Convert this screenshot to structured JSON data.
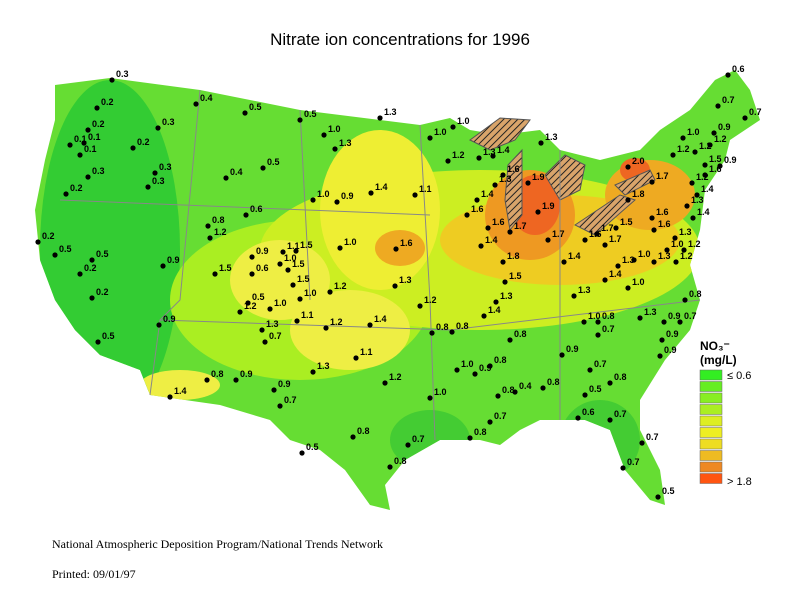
{
  "title": "Nitrate ion concentrations for 1996",
  "legend": {
    "title": "NO₃⁻",
    "units": "(mg/L)",
    "low_label": "≤ 0.6",
    "high_label": "> 1.8"
  },
  "sites": [
    "0.3",
    "0.2",
    "0.2",
    "0.1",
    "0.1",
    "0.1",
    "0.3",
    "0.2",
    "0.3",
    "0.2",
    "0.3",
    "0.3",
    "0.4",
    "0.5",
    "0.5",
    "0.4",
    "0.5",
    "0.2",
    "0.5",
    "0.5",
    "0.2",
    "0.2",
    "0.5",
    "0.6",
    "0.8",
    "1.2",
    "0.9",
    "1.5",
    "0.9",
    "0.6",
    "1.0",
    "1.1",
    "1.5",
    "1.5",
    "1.5",
    "0.5",
    "1.2",
    "1.0",
    "1.0",
    "0.9",
    "1.3",
    "0.7",
    "1.1",
    "0.8",
    "0.9",
    "1.4",
    "0.9",
    "0.7",
    "1.3",
    "1.3",
    "1.0",
    "1.3",
    "1.0",
    "0.9",
    "1.4",
    "1.1",
    "1.0",
    "1.6",
    "1.2",
    "1.3",
    "1.2",
    "1.4",
    "1.2",
    "1.1",
    "1.2",
    "1.0",
    "0.8",
    "0.5",
    "0.8",
    "0.7",
    "1.0",
    "1.0",
    "1.2",
    "1.3",
    "1.4",
    "1.3",
    "1.3",
    "1.6",
    "1.9",
    "1.9",
    "1.4",
    "1.6",
    "1.6",
    "1.7",
    "1.7",
    "1.4",
    "1.8",
    "1.4",
    "1.6",
    "1.7",
    "1.7",
    "1.5",
    "1.8",
    "1.6",
    "1.6",
    "1.3",
    "1.0",
    "1.3",
    "1.4",
    "1.0",
    "1.3",
    "1.5",
    "1.3",
    "1.4",
    "0.8",
    "0.8",
    "0.8",
    "1.0",
    "0.8",
    "0.7",
    "1.3",
    "0.9",
    "0.9",
    "0.8",
    "0.7",
    "0.9",
    "0.7",
    "0.8",
    "0.9",
    "1.0",
    "0.9",
    "0.8",
    "0.8",
    "0.4",
    "0.8",
    "0.5",
    "0.7",
    "0.8",
    "0.6",
    "0.7",
    "0.7",
    "0.7",
    "0.5",
    "0.6",
    "0.7",
    "0.7",
    "0.9",
    "1.0",
    "1.2",
    "1.2",
    "1.2",
    "1.5",
    "0.9",
    "1.6",
    "2.0",
    "1.7",
    "1.2",
    "1.4",
    "1.3",
    "1.4",
    "1.3",
    "1.0",
    "1.2",
    "1.2"
  ],
  "footer": {
    "source": "National Atmospheric Deposition Program/National Trends Network",
    "printed": "Printed: 09/01/97"
  }
}
